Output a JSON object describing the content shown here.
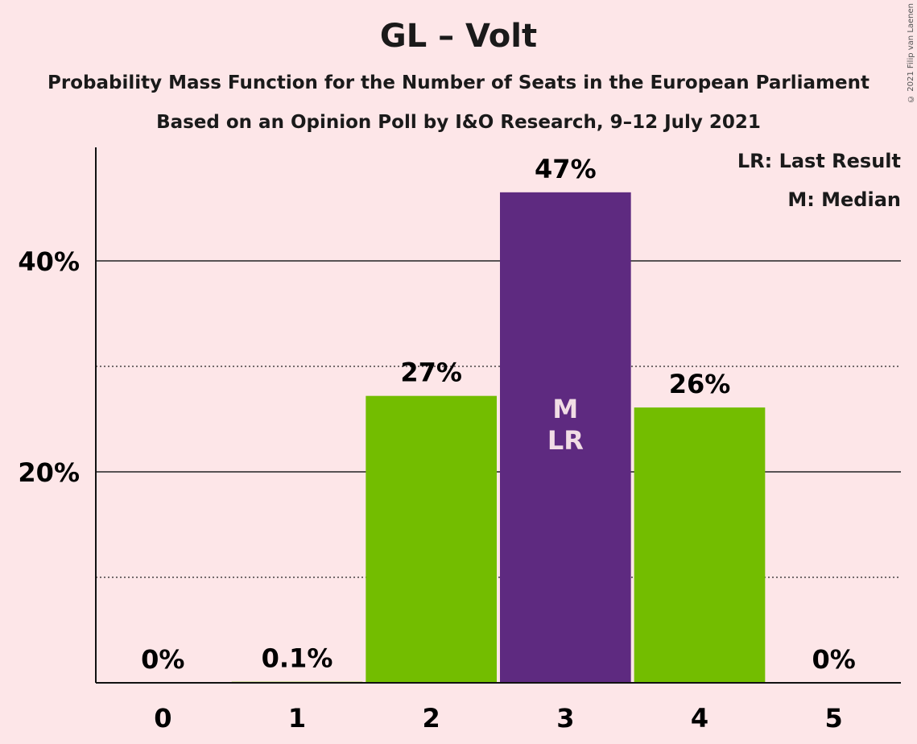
{
  "header": {
    "title": "GL – Volt",
    "subtitle": "Probability Mass Function for the Number of Seats in the European Parliament",
    "subtitle2": "Based on an Opinion Poll by I&O Research, 9–12 July 2021",
    "copyright": "© 2021 Filip van Laenen"
  },
  "legend": {
    "last_result": "LR: Last Result",
    "median": "M: Median"
  },
  "colors": {
    "background": "#FDE6E8",
    "bar": "#73BD00",
    "median_bar": "#5E2A80",
    "in_bar_text": "#F1DDE5"
  },
  "chart_data": {
    "type": "bar",
    "categories": [
      "0",
      "1",
      "2",
      "3",
      "4",
      "5"
    ],
    "values": [
      0,
      0.1,
      27.2,
      46.5,
      26.1,
      0
    ],
    "data_labels": [
      "0%",
      "0.1%",
      "27%",
      "47%",
      "26%",
      "0%"
    ],
    "median_index": 3,
    "last_result_index": 3,
    "in_bar_labels": [
      "M",
      "LR"
    ],
    "ylim": [
      0,
      50
    ],
    "major_ticks": [
      20,
      40
    ],
    "major_tick_labels": [
      "20%",
      "40%"
    ],
    "minor_gridlines": [
      10,
      30
    ],
    "grid": true
  }
}
